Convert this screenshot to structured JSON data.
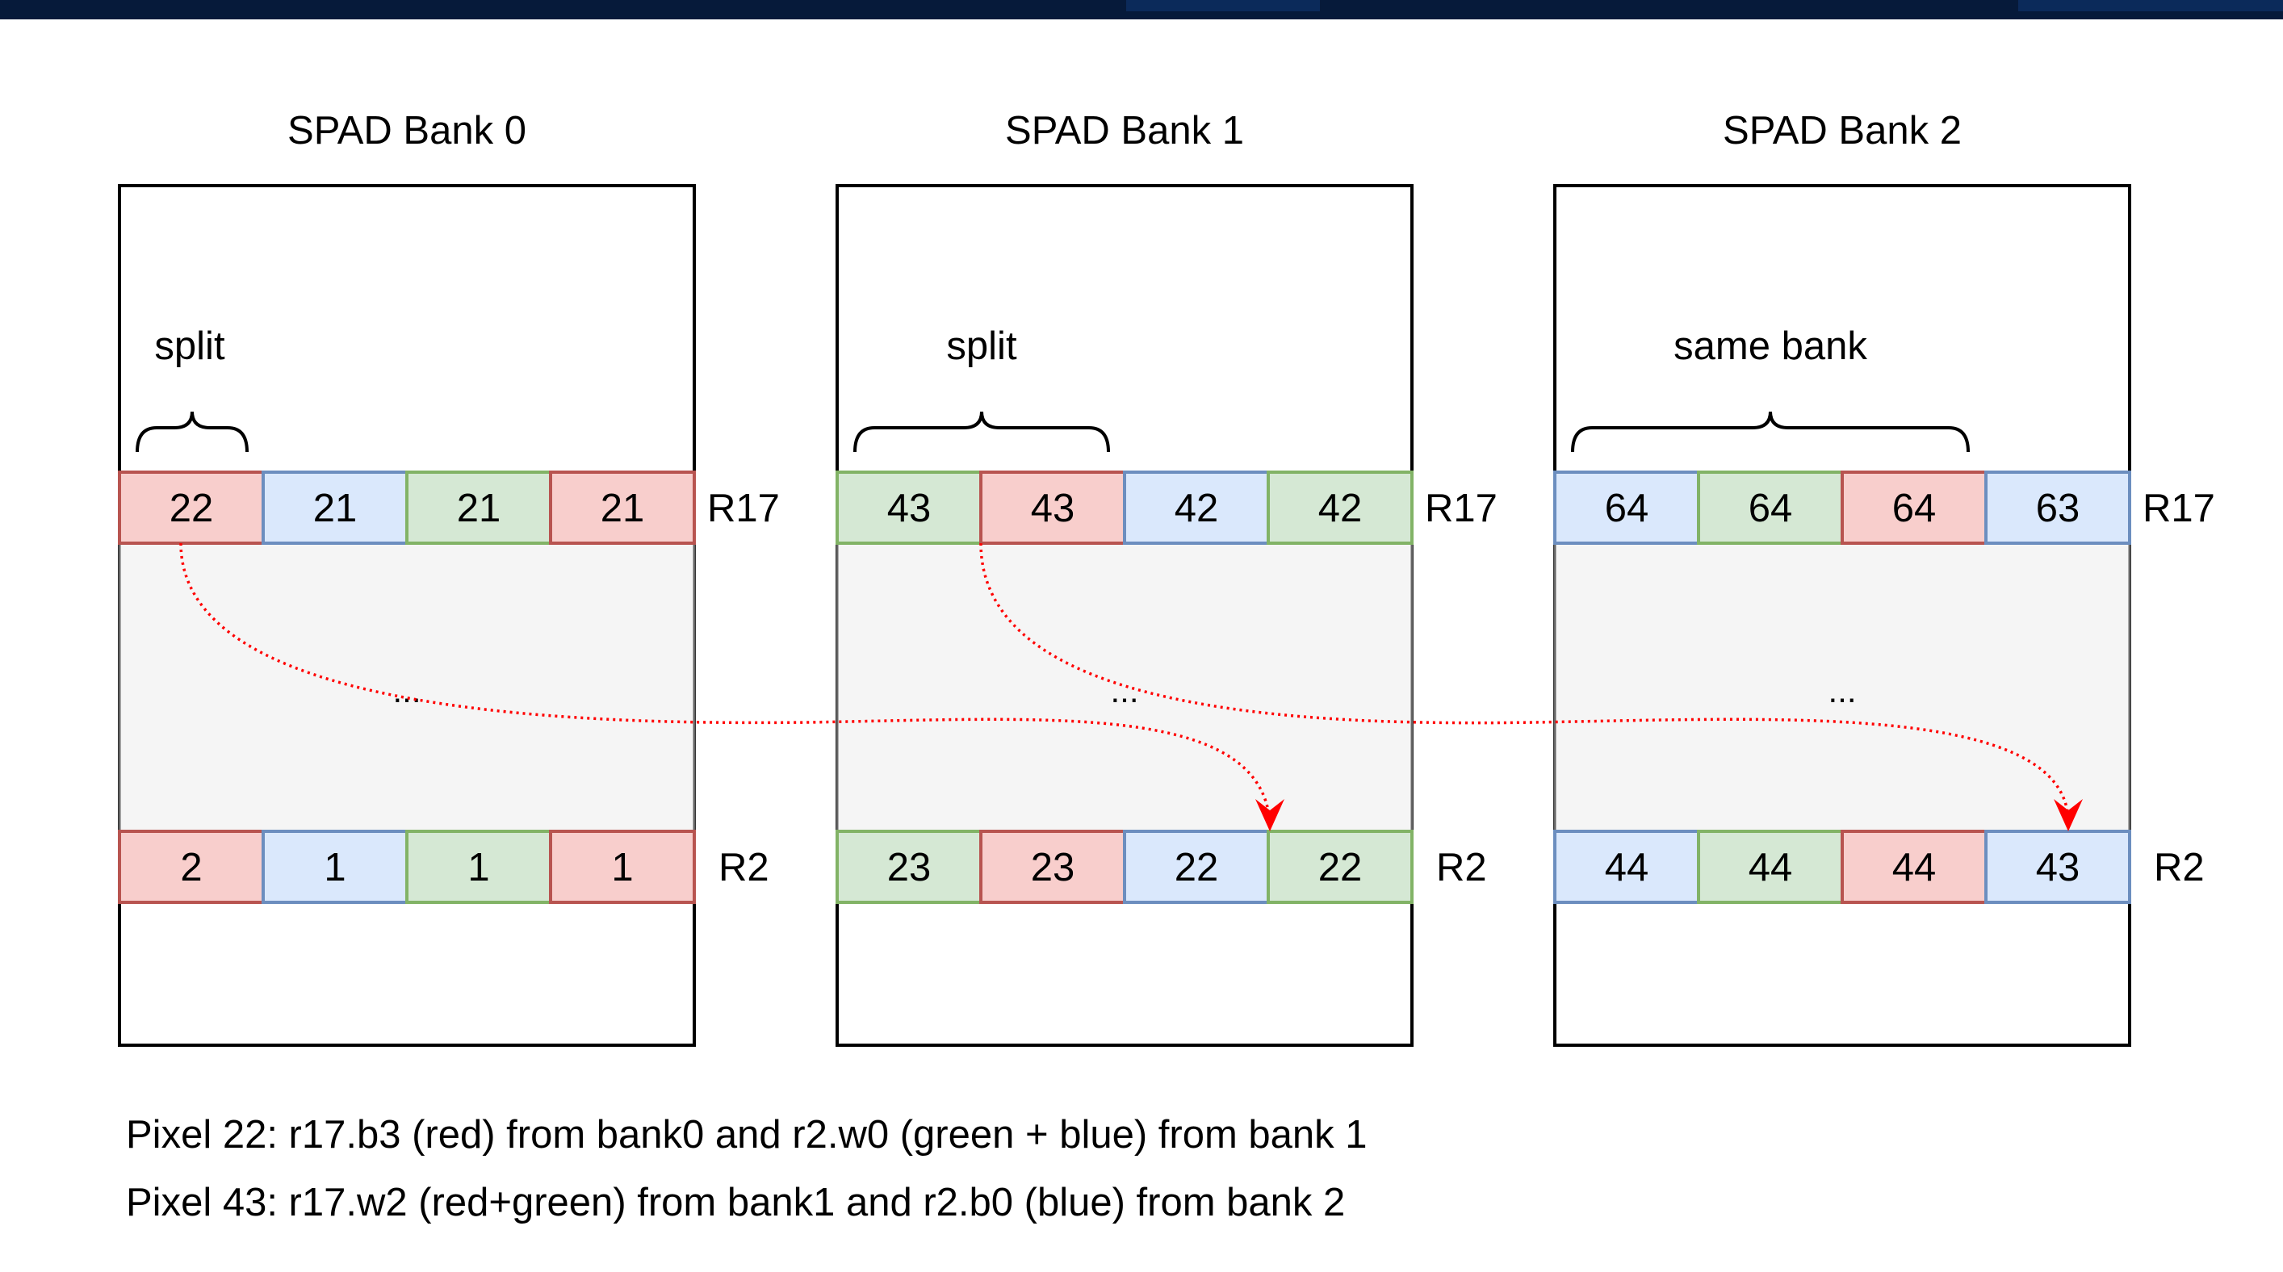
{
  "colors": {
    "red_fill": "#f8cecc",
    "red_stroke": "#b85450",
    "blue_fill": "#dae8fc",
    "blue_stroke": "#6c8ebf",
    "green_fill": "#d5e8d4",
    "green_stroke": "#82b366",
    "arrow": "#ff0000",
    "top_bar": "#061a3a"
  },
  "banks": [
    {
      "title": "SPAD Bank 0",
      "brace_label": "split",
      "ellipsis": "...",
      "r17": {
        "label": "R17",
        "cells": [
          {
            "v": "22",
            "c": "red"
          },
          {
            "v": "21",
            "c": "blue"
          },
          {
            "v": "21",
            "c": "green"
          },
          {
            "v": "21",
            "c": "red"
          }
        ]
      },
      "r2": {
        "label": "R2",
        "cells": [
          {
            "v": "2",
            "c": "red"
          },
          {
            "v": "1",
            "c": "blue"
          },
          {
            "v": "1",
            "c": "green"
          },
          {
            "v": "1",
            "c": "red"
          }
        ]
      }
    },
    {
      "title": "SPAD Bank 1",
      "brace_label": "split",
      "ellipsis": "...",
      "r17": {
        "label": "R17",
        "cells": [
          {
            "v": "43",
            "c": "green"
          },
          {
            "v": "43",
            "c": "red"
          },
          {
            "v": "42",
            "c": "blue"
          },
          {
            "v": "42",
            "c": "green"
          }
        ]
      },
      "r2": {
        "label": "R2",
        "cells": [
          {
            "v": "23",
            "c": "green"
          },
          {
            "v": "23",
            "c": "red"
          },
          {
            "v": "22",
            "c": "blue"
          },
          {
            "v": "22",
            "c": "green"
          }
        ]
      }
    },
    {
      "title": "SPAD Bank 2",
      "brace_label": "same bank",
      "ellipsis": "...",
      "r17": {
        "label": "R17",
        "cells": [
          {
            "v": "64",
            "c": "blue"
          },
          {
            "v": "64",
            "c": "green"
          },
          {
            "v": "64",
            "c": "red"
          },
          {
            "v": "63",
            "c": "blue"
          }
        ]
      },
      "r2": {
        "label": "R2",
        "cells": [
          {
            "v": "44",
            "c": "blue"
          },
          {
            "v": "44",
            "c": "green"
          },
          {
            "v": "44",
            "c": "red"
          },
          {
            "v": "43",
            "c": "blue"
          }
        ]
      }
    }
  ],
  "captions": [
    "Pixel 22: r17.b3 (red) from bank0 and r2.w0 (green + blue) from bank 1",
    "Pixel 43: r17.w2 (red+green) from bank1 and r2.b0 (blue) from bank 2"
  ]
}
